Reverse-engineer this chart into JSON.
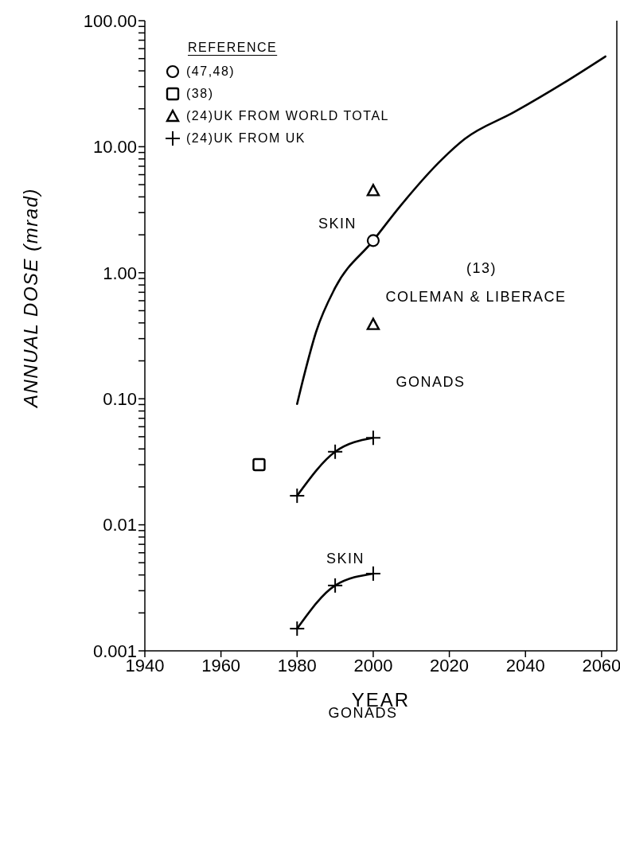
{
  "chart_data": {
    "type": "line",
    "xlabel": "YEAR",
    "ylabel": "ANNUAL DOSE (mrad)",
    "log": "y",
    "legend": "top left",
    "legend_title": "REFERENCE",
    "line_style": "solid",
    "xlim": [
      1940,
      2064
    ],
    "xticks": [
      1940,
      1960,
      1980,
      2000,
      2020,
      2040,
      2060
    ],
    "ylim": [
      0.001,
      100
    ],
    "yticks": [
      {
        "value": 0.001,
        "label": "0.001"
      },
      {
        "value": 0.002,
        "label": null
      },
      {
        "value": 0.003,
        "label": null
      },
      {
        "value": 0.004,
        "label": null
      },
      {
        "value": 0.005,
        "label": null
      },
      {
        "value": 0.006,
        "label": null
      },
      {
        "value": 0.007,
        "label": null
      },
      {
        "value": 0.008,
        "label": null
      },
      {
        "value": 0.009,
        "label": null
      },
      {
        "value": 0.01,
        "label": "0.01"
      },
      {
        "value": 0.02,
        "label": null
      },
      {
        "value": 0.03,
        "label": null
      },
      {
        "value": 0.04,
        "label": null
      },
      {
        "value": 0.05,
        "label": null
      },
      {
        "value": 0.06,
        "label": null
      },
      {
        "value": 0.07,
        "label": null
      },
      {
        "value": 0.08,
        "label": null
      },
      {
        "value": 0.09,
        "label": null
      },
      {
        "value": 0.1,
        "label": "0.10"
      },
      {
        "value": 0.2,
        "label": null
      },
      {
        "value": 0.3,
        "label": null
      },
      {
        "value": 0.4,
        "label": null
      },
      {
        "value": 0.5,
        "label": null
      },
      {
        "value": 0.6,
        "label": null
      },
      {
        "value": 0.7,
        "label": null
      },
      {
        "value": 0.8,
        "label": null
      },
      {
        "value": 0.9,
        "label": null
      },
      {
        "value": 1,
        "label": "1.00"
      },
      {
        "value": 2,
        "label": null
      },
      {
        "value": 3,
        "label": null
      },
      {
        "value": 4,
        "label": null
      },
      {
        "value": 5,
        "label": null
      },
      {
        "value": 6,
        "label": null
      },
      {
        "value": 7,
        "label": null
      },
      {
        "value": 8,
        "label": null
      },
      {
        "value": 9,
        "label": null
      },
      {
        "value": 10,
        "label": "10.00"
      },
      {
        "value": 20,
        "label": null
      },
      {
        "value": 30,
        "label": null
      },
      {
        "value": 40,
        "label": null
      },
      {
        "value": 50,
        "label": null
      },
      {
        "value": 60,
        "label": null
      },
      {
        "value": 70,
        "label": null
      },
      {
        "value": 80,
        "label": null
      },
      {
        "value": 90,
        "label": null
      },
      {
        "value": 100,
        "label": "100.00"
      }
    ],
    "series": [
      {
        "color": "#000000",
        "marker": "none",
        "x": [
          1980,
          1982,
          1985,
          1990,
          2000,
          2007,
          2018,
          2024,
          2037,
          2050,
          2061
        ],
        "values": [
          0.091,
          0.16,
          0.34,
          0.76,
          1.8,
          3.35,
          7.9,
          11.5,
          18.8,
          32,
          52
        ]
      },
      {
        "type": "scatter",
        "name": "(47,48)",
        "color": "#000000",
        "marker": "circle",
        "x": [
          2000
        ],
        "values": [
          1.8
        ]
      },
      {
        "type": "scatter",
        "name": "(38)",
        "color": "#000000",
        "marker": "square",
        "x": [
          1970
        ],
        "values": [
          0.03
        ]
      },
      {
        "type": "scatter",
        "name": "(24)UK FROM WORLD TOTAL",
        "color": "#000000",
        "marker": "triangle",
        "x": [
          2000,
          2000
        ],
        "values": [
          4.5,
          0.39
        ]
      },
      {
        "name": "(24)UK FROM UK",
        "color": "#000000",
        "marker": "cross",
        "x": [
          1980,
          1990,
          2000
        ],
        "values": [
          0.017,
          0.038,
          0.049
        ]
      },
      {
        "color": "#000000",
        "marker": "cross",
        "x": [
          1980,
          1990,
          2000
        ],
        "values": [
          0.0015,
          0.0033,
          0.0041
        ]
      }
    ],
    "annotations": [
      "SKIN",
      "GONADS",
      "(13)",
      "COLEMAN & LIBERACE",
      "SKIN",
      "GONADS"
    ]
  }
}
